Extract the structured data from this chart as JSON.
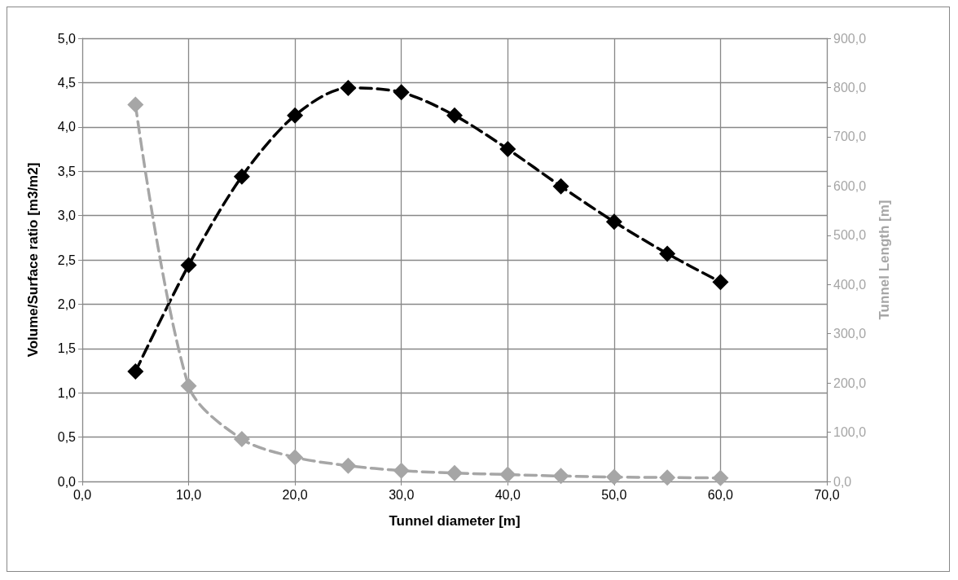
{
  "chart_data": {
    "type": "line",
    "xlabel": "Tunnel diameter [m]",
    "ylabel": "Volume/Surface ratio [m3/m2]",
    "y2label": "Tunnel Length [m]",
    "x": [
      5,
      10,
      15,
      20,
      25,
      30,
      35,
      40,
      45,
      50,
      55,
      60
    ],
    "series": [
      {
        "color": "#000000",
        "values": [
          1.24,
          2.44,
          3.44,
          4.13,
          4.44,
          4.39,
          4.13,
          3.75,
          3.33,
          2.93,
          2.57,
          2.25
        ]
      },
      {
        "color": "#a6a6a6",
        "axis": "y2",
        "values": [
          765,
          194,
          86,
          49,
          32,
          22,
          17,
          14,
          11,
          9,
          8,
          7
        ]
      }
    ],
    "xlim": [
      0,
      70
    ],
    "xticks": [
      {
        "value": 0,
        "label": "0,0"
      },
      {
        "value": 10,
        "label": "10,0"
      },
      {
        "value": 20,
        "label": "20,0"
      },
      {
        "value": 30,
        "label": "30,0"
      },
      {
        "value": 40,
        "label": "40,0"
      },
      {
        "value": 50,
        "label": "50,0"
      },
      {
        "value": 60,
        "label": "60,0"
      },
      {
        "value": 70,
        "label": "70,0"
      }
    ],
    "ylim": [
      0,
      5
    ],
    "yticks": [
      {
        "value": 0,
        "label": "0,0"
      },
      {
        "value": 0.5,
        "label": "0,5"
      },
      {
        "value": 1,
        "label": "1,0"
      },
      {
        "value": 1.5,
        "label": "1,5"
      },
      {
        "value": 2,
        "label": "2,0"
      },
      {
        "value": 2.5,
        "label": "2,5"
      },
      {
        "value": 3,
        "label": "3,0"
      },
      {
        "value": 3.5,
        "label": "3,5"
      },
      {
        "value": 4,
        "label": "4,0"
      },
      {
        "value": 4.5,
        "label": "4,5"
      },
      {
        "value": 5,
        "label": "5,0"
      }
    ],
    "y2lim": [
      0,
      900
    ],
    "y2ticks": [
      {
        "value": 0,
        "label": "0,0"
      },
      {
        "value": 100,
        "label": "100,0"
      },
      {
        "value": 200,
        "label": "200,0"
      },
      {
        "value": 300,
        "label": "300,0"
      },
      {
        "value": 400,
        "label": "400,0"
      },
      {
        "value": 500,
        "label": "500,0"
      },
      {
        "value": 600,
        "label": "600,0"
      },
      {
        "value": 700,
        "label": "700,0"
      },
      {
        "value": 800,
        "label": "800,0"
      },
      {
        "value": 900,
        "label": "900,0"
      }
    ],
    "grid": true,
    "marker": "diamond",
    "line_style": "dashed"
  }
}
